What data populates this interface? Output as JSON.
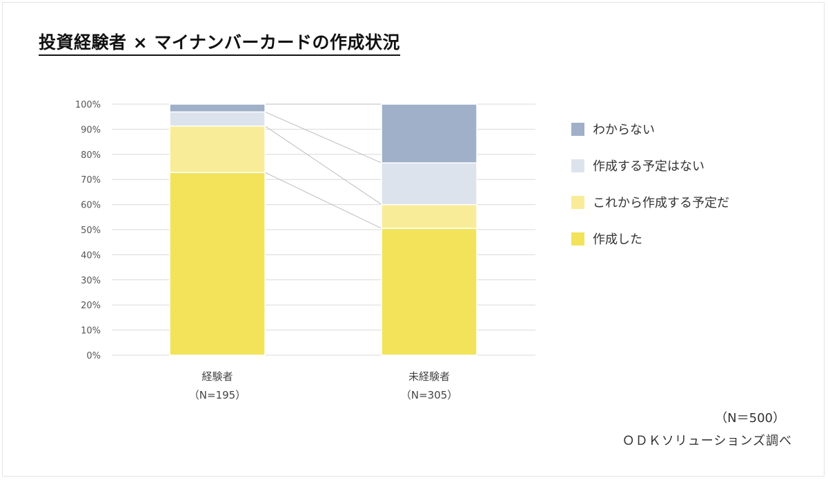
{
  "title": "投資経験者 × マイナンバーカードの作成状況",
  "chart_data": {
    "type": "bar",
    "stacked": true,
    "categories": [
      "経験者",
      "未経験者"
    ],
    "category_counts": [
      "（N=195）",
      "（N=305）"
    ],
    "y_ticks": [
      "0%",
      "10%",
      "20%",
      "30%",
      "40%",
      "50%",
      "60%",
      "70%",
      "80%",
      "90%",
      "100%"
    ],
    "ylim": [
      0,
      100
    ],
    "grid": true,
    "legend_position": "right",
    "series": [
      {
        "name": "作成した",
        "values": [
          72.8,
          50.5
        ],
        "color": "#f2e35a"
      },
      {
        "name": "これから作成する予定だ",
        "values": [
          18.5,
          9.5
        ],
        "color": "#f8ec98"
      },
      {
        "name": "作成する予定はない",
        "values": [
          5.6,
          16.6
        ],
        "color": "#dde3ec"
      },
      {
        "name": "わからない",
        "values": [
          3.1,
          23.4
        ],
        "color": "#9fb0c8"
      }
    ]
  },
  "notes": {
    "total_n": "（N＝500）",
    "source": "ＯＤＫソリューションズ調べ"
  }
}
